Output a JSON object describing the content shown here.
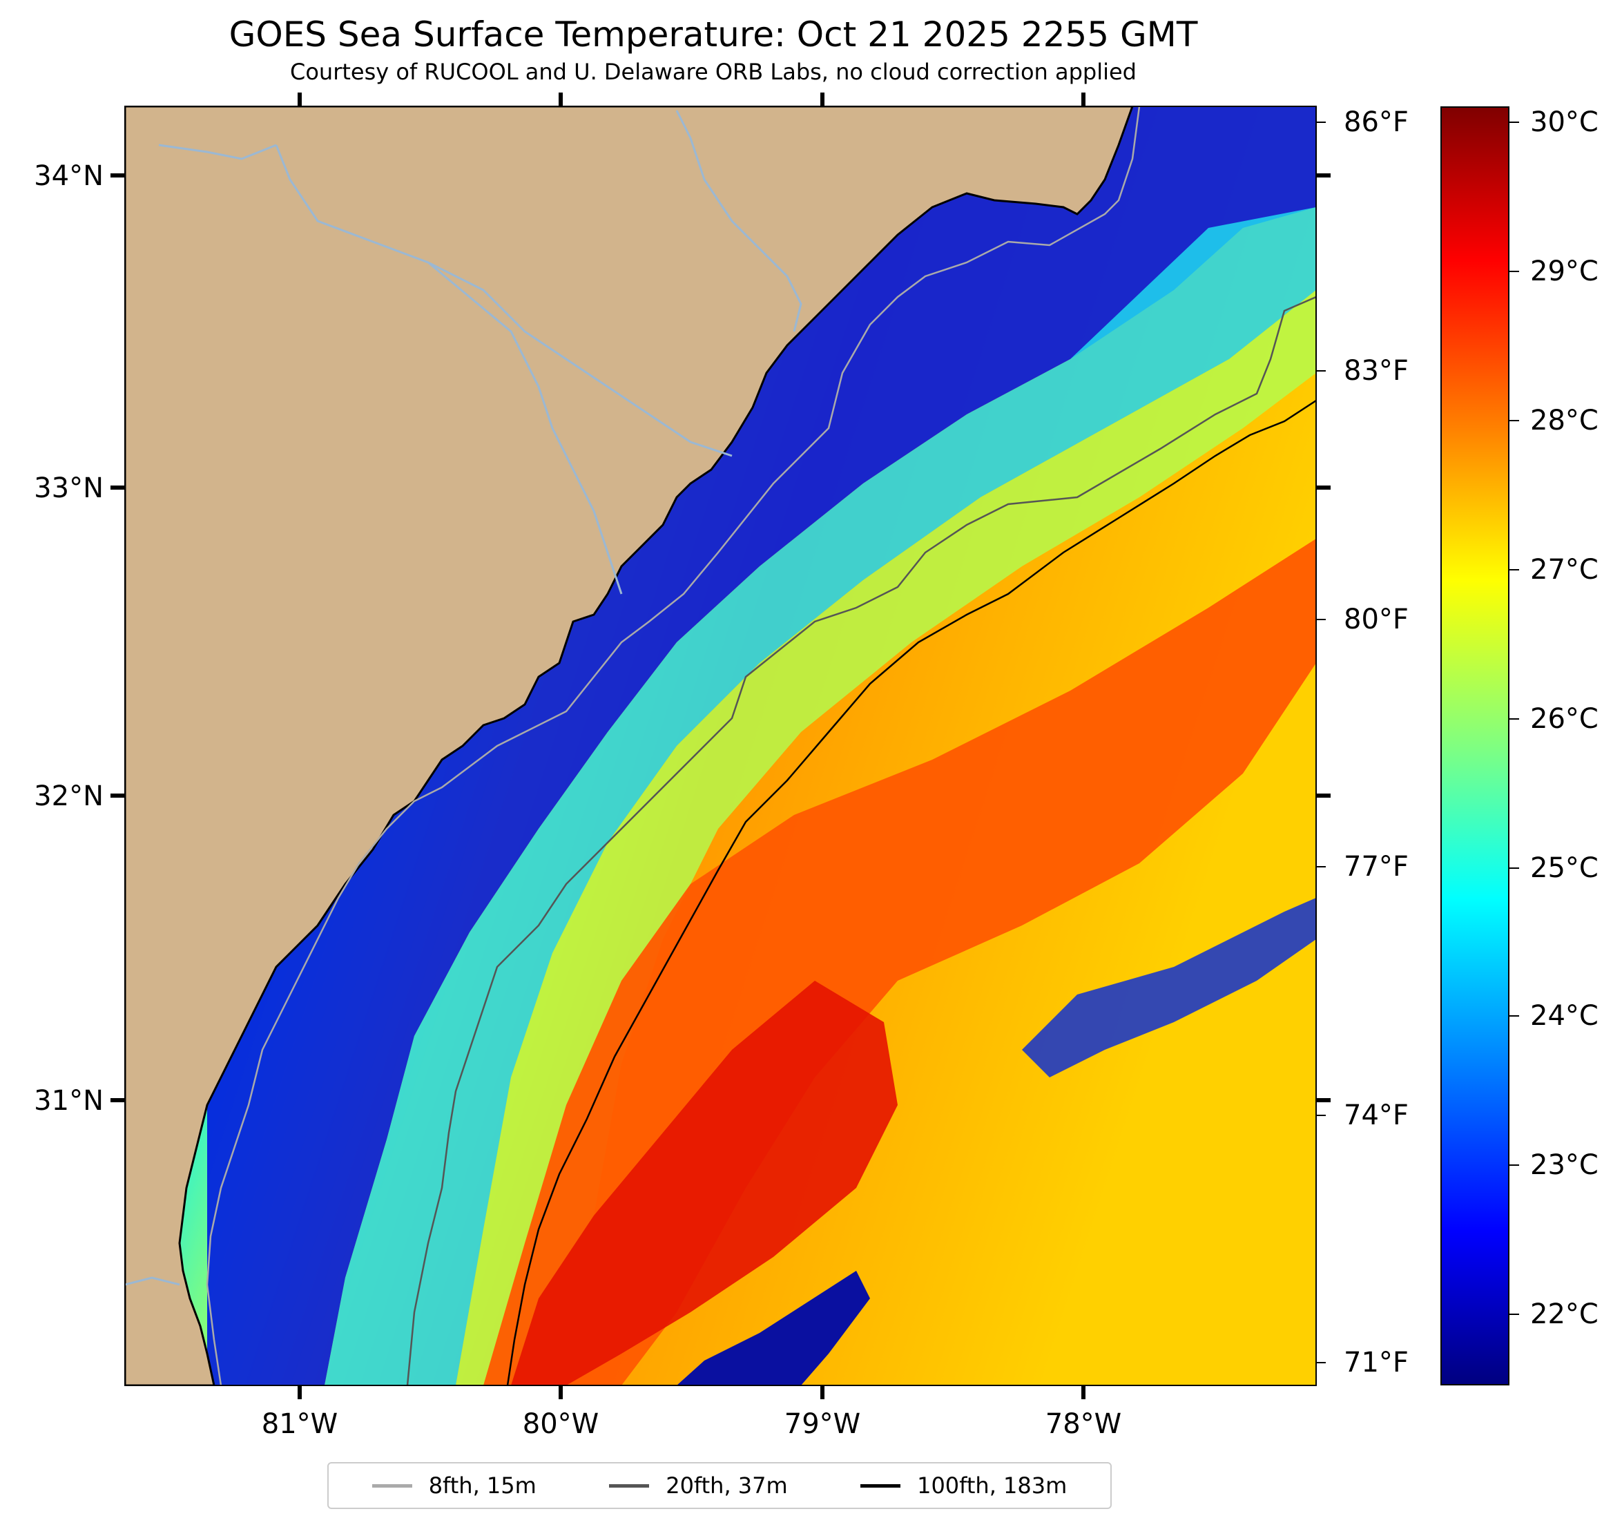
{
  "title": "GOES Sea Surface Temperature: Oct 21 2025 2255 GMT",
  "subtitle": "Courtesy of RUCOOL and U. Delaware ORB Labs, no cloud correction applied",
  "colors": {
    "land": "#d2b48c",
    "coastline": "#000000",
    "rivers": "#9bb8d3",
    "isobath_8fth": "#aaaaaa",
    "isobath_20fth": "#555555",
    "isobath_100fth": "#000000"
  },
  "latitude_labels": [
    "34°N",
    "33°N",
    "32°N",
    "31°N"
  ],
  "longitude_labels": [
    "81°W",
    "80°W",
    "79°W",
    "78°W"
  ],
  "fahrenheit_labels": [
    "86°F",
    "83°F",
    "80°F",
    "77°F",
    "74°F",
    "71°F"
  ],
  "colorbar": {
    "colormap": "jet",
    "min_c": 21.5,
    "max_c": 30.2,
    "labels": [
      "30°C",
      "29°C",
      "28°C",
      "27°C",
      "26°C",
      "25°C",
      "24°C",
      "23°C",
      "22°C"
    ]
  },
  "legend": [
    {
      "label": "8fth, 15m",
      "color": "#aaaaaa"
    },
    {
      "label": "20fth, 37m",
      "color": "#555555"
    },
    {
      "label": "100fth, 183m",
      "color": "#000000"
    }
  ]
}
